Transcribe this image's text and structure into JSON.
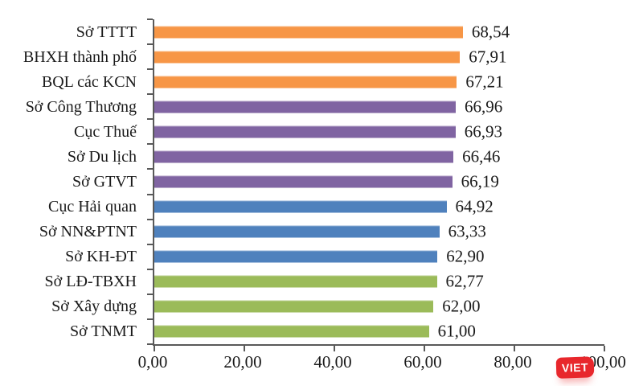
{
  "chart_data": {
    "type": "bar",
    "orientation": "horizontal",
    "title": "",
    "xlabel": "",
    "ylabel": "",
    "xlim": [
      0,
      100
    ],
    "grid": false,
    "legend": "none",
    "categories": [
      "Sở TTTT",
      "BHXH thành phố",
      "BQL các KCN",
      "Sở Công Thương",
      "Cục Thuế",
      "Sở Du lịch",
      "Sở GTVT",
      "Cục Hải quan",
      "Sở NN&PTNT",
      "Sở KH-ĐT",
      "Sở LĐ-TBXH",
      "Sở Xây dựng",
      "Sở TNMT"
    ],
    "values": [
      68.54,
      67.91,
      67.21,
      66.96,
      66.93,
      66.46,
      66.19,
      64.92,
      63.33,
      62.9,
      62.77,
      62.0,
      61.0
    ],
    "value_labels": [
      "68,54",
      "67,91",
      "67,21",
      "66,96",
      "66,93",
      "66,46",
      "66,19",
      "64,92",
      "63,33",
      "62,90",
      "62,77",
      "62,00",
      "61,00"
    ],
    "bar_colors": [
      "#F79646",
      "#F79646",
      "#F79646",
      "#8064A2",
      "#8064A2",
      "#8064A2",
      "#8064A2",
      "#4F81BD",
      "#4F81BD",
      "#4F81BD",
      "#9BBB59",
      "#9BBB59",
      "#9BBB59"
    ],
    "x_ticks": [
      {
        "value": 0,
        "label": "0,00"
      },
      {
        "value": 20,
        "label": "20,00"
      },
      {
        "value": 40,
        "label": "40,00"
      },
      {
        "value": 60,
        "label": "60,00"
      },
      {
        "value": 80,
        "label": "80,00"
      },
      {
        "value": 100,
        "label": "100,00"
      }
    ],
    "axis_color": "#595959"
  },
  "watermark": {
    "label": "VIET",
    "background_color": "#E8272C",
    "text_color": "#FFFFFF"
  }
}
